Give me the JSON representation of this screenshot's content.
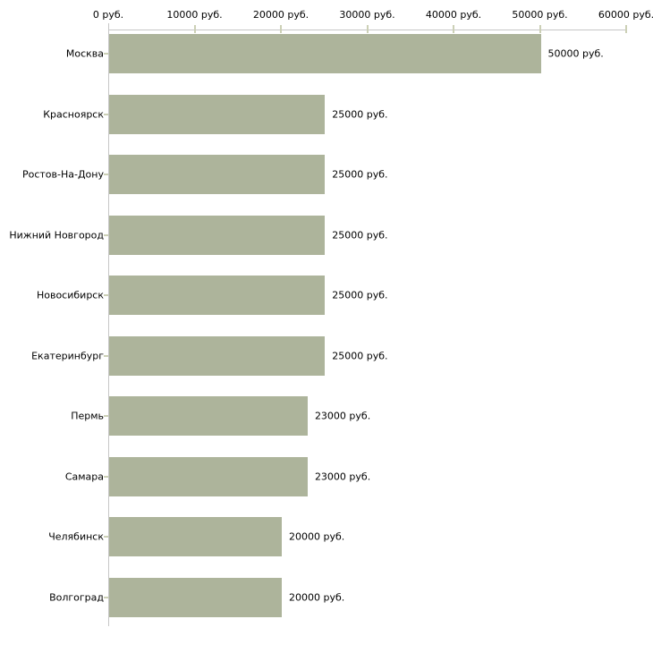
{
  "chart_data": {
    "type": "bar",
    "orientation": "horizontal",
    "title": "",
    "xlabel": "",
    "ylabel": "",
    "categories": [
      "Москва",
      "Красноярск",
      "Ростов-На-Дону",
      "Нижний Новгород",
      "Новосибирск",
      "Екатеринбург",
      "Пермь",
      "Самара",
      "Челябинск",
      "Волгоград"
    ],
    "values": [
      50000,
      25000,
      25000,
      25000,
      25000,
      25000,
      23000,
      23000,
      20000,
      20000
    ],
    "value_labels": [
      "50000 руб.",
      "25000 руб.",
      "25000 руб.",
      "25000 руб.",
      "25000 руб.",
      "25000 руб.",
      "23000 руб.",
      "23000 руб.",
      "20000 руб.",
      "20000 руб."
    ],
    "x_axis": {
      "position": "top",
      "min": 0,
      "max": 60000,
      "ticks": [
        0,
        10000,
        20000,
        30000,
        40000,
        50000,
        60000
      ],
      "tick_labels": [
        "0 руб.",
        "10000 руб.",
        "20000 руб.",
        "30000 руб.",
        "40000 руб.",
        "50000 руб.",
        "60000 руб."
      ]
    },
    "grid": false,
    "legend": "none",
    "colors": {
      "bar_fill": "#adb49b",
      "axis_line": "#c6c6c6",
      "tick_mark": "#ccd0b6",
      "text": "#000000",
      "background": "#ffffff"
    }
  }
}
